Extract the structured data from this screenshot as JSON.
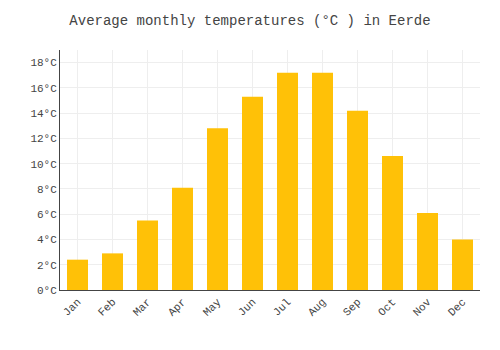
{
  "chart_data": {
    "type": "bar",
    "title": "Average monthly temperatures (°C ) in Eerde",
    "categories": [
      "Jan",
      "Feb",
      "Mar",
      "Apr",
      "May",
      "Jun",
      "Jul",
      "Aug",
      "Sep",
      "Oct",
      "Nov",
      "Dec"
    ],
    "values": [
      2.4,
      2.9,
      5.5,
      8.1,
      12.8,
      15.3,
      17.2,
      17.2,
      14.2,
      10.6,
      6.1,
      4.0
    ],
    "color": "#FFC107",
    "ylim": [
      0,
      19
    ],
    "yticks": [
      {
        "value": 0,
        "label": "0°C"
      },
      {
        "value": 2,
        "label": "2°C"
      },
      {
        "value": 4,
        "label": "4°C"
      },
      {
        "value": 6,
        "label": "6°C"
      },
      {
        "value": 8,
        "label": "8°C"
      },
      {
        "value": 10,
        "label": "10°C"
      },
      {
        "value": 12,
        "label": "12°C"
      },
      {
        "value": 14,
        "label": "14°C"
      },
      {
        "value": 16,
        "label": "16°C"
      },
      {
        "value": 18,
        "label": "18°C"
      }
    ],
    "grid": true
  }
}
